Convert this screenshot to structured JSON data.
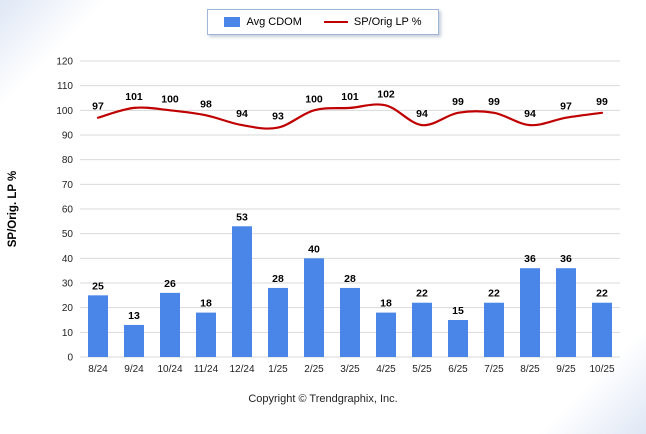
{
  "chart_data": {
    "type": "bar",
    "subtype": "bar+line combo",
    "categories": [
      "8/24",
      "9/24",
      "10/24",
      "11/24",
      "12/24",
      "1/25",
      "2/25",
      "3/25",
      "4/25",
      "5/25",
      "6/25",
      "7/25",
      "8/25",
      "9/25",
      "10/25"
    ],
    "series": [
      {
        "name": "Avg CDOM",
        "type": "bar",
        "color": "#4a86e8",
        "values": [
          25,
          13,
          26,
          18,
          53,
          28,
          40,
          28,
          18,
          22,
          15,
          22,
          36,
          36,
          22
        ]
      },
      {
        "name": "SP/Orig LP %",
        "type": "line",
        "color": "#c00000",
        "values": [
          97,
          101,
          100,
          98,
          94,
          93,
          100,
          101,
          102,
          94,
          99,
          99,
          94,
          97,
          99
        ]
      }
    ],
    "title": "",
    "xlabel": "",
    "ylabel": "SP/Orig. LP %",
    "ylim": [
      0,
      120
    ],
    "ytick_step": 10,
    "grid": true,
    "legend_position": "top",
    "gridline_color": "#d9d9d9",
    "label_color": "#000000"
  },
  "legend": {
    "bar_label": "Avg CDOM",
    "line_label": "SP/Orig LP %"
  },
  "footer": {
    "copyright": "Copyright © Trendgraphix, Inc."
  }
}
